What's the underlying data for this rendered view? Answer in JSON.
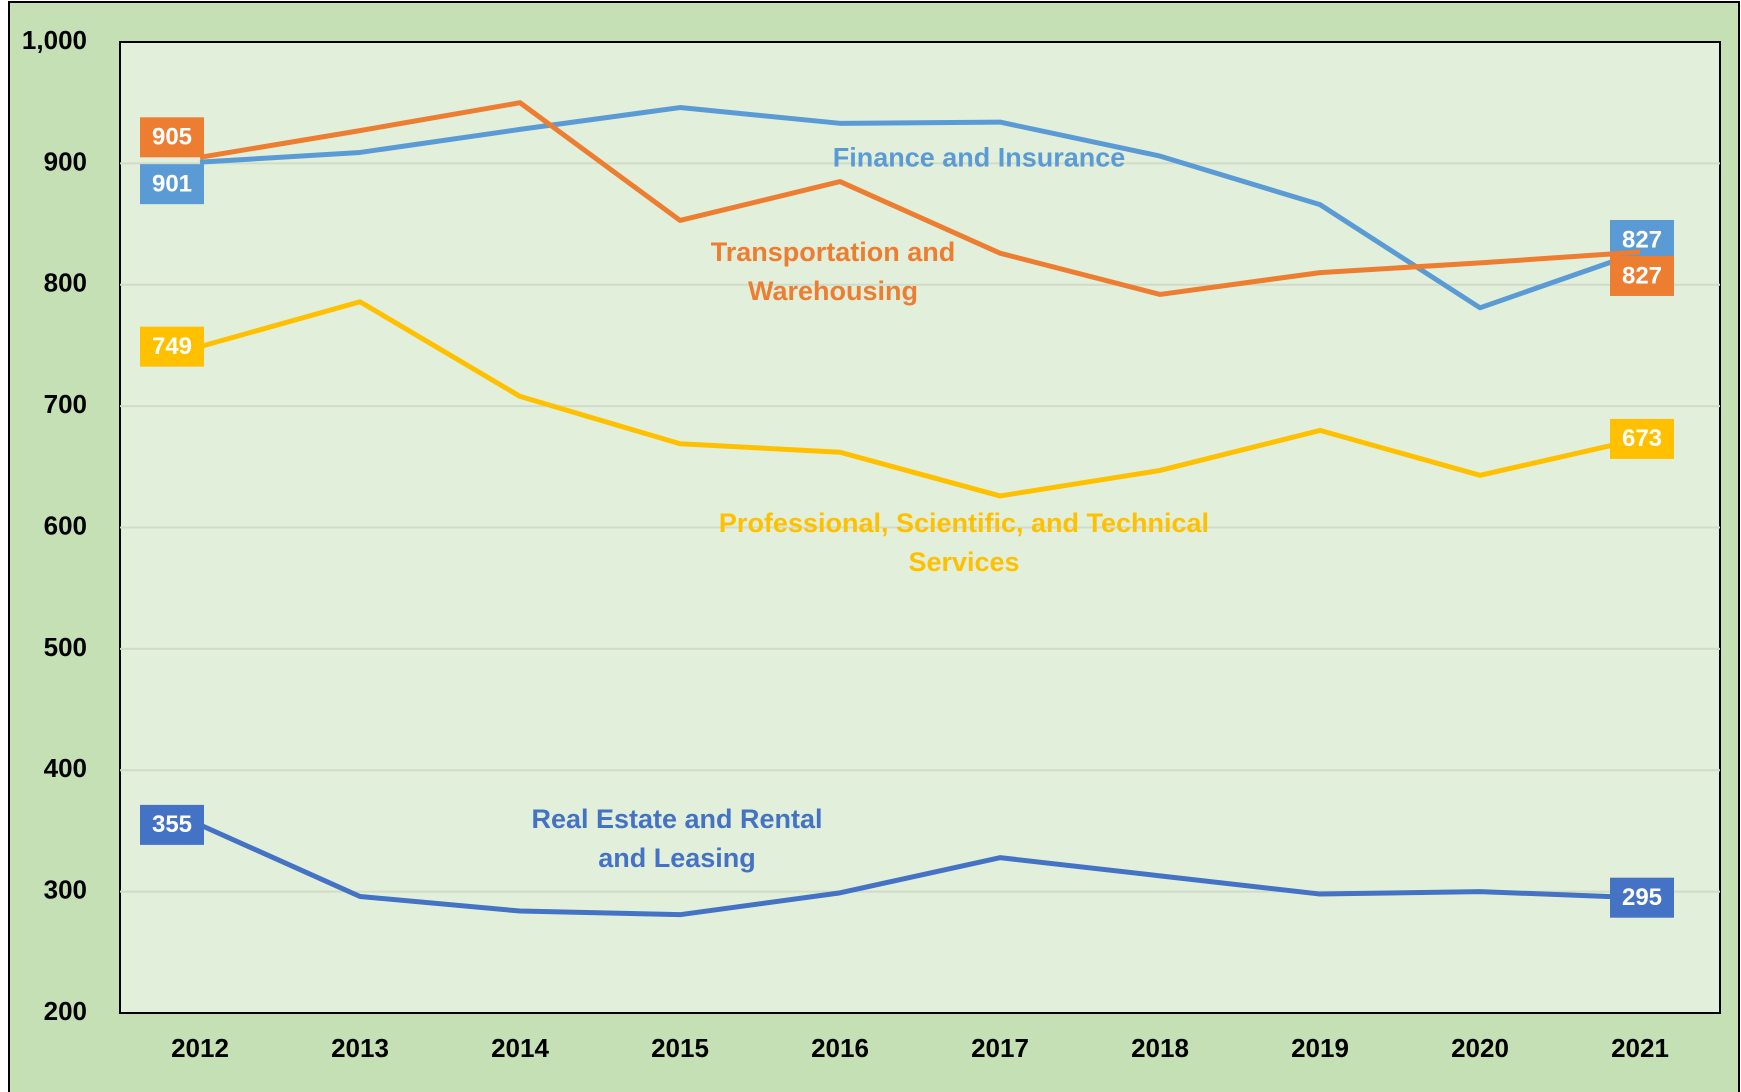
{
  "chart_data": {
    "type": "line",
    "categories": [
      "2012",
      "2013",
      "2014",
      "2015",
      "2016",
      "2017",
      "2018",
      "2019",
      "2020",
      "2021"
    ],
    "series": [
      {
        "name": "Finance and Insurance",
        "color": "#5b9bd5",
        "values": [
          901,
          909,
          928,
          946,
          933,
          934,
          906,
          866,
          781,
          827
        ]
      },
      {
        "name": "Transportation and Warehousing",
        "color": "#ed7d31",
        "values": [
          905,
          927,
          950,
          853,
          885,
          826,
          792,
          810,
          818,
          827
        ]
      },
      {
        "name": "Professional, Scientific, and Technical Services",
        "color": "#ffc000",
        "values": [
          749,
          786,
          708,
          669,
          662,
          626,
          647,
          680,
          643,
          673
        ]
      },
      {
        "name": "Real Estate and Rental and Leasing",
        "color": "#4472c4",
        "values": [
          355,
          296,
          284,
          281,
          299,
          328,
          313,
          298,
          300,
          295
        ]
      }
    ],
    "ylim": [
      200,
      1000
    ],
    "yticks": [
      200,
      300,
      400,
      500,
      600,
      700,
      800,
      900,
      {
        "value": 1000,
        "label": "1,000"
      }
    ],
    "grid": true
  }
}
